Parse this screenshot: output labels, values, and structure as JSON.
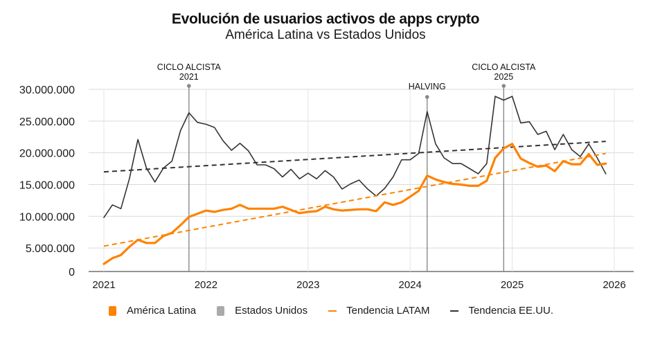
{
  "chart_data": {
    "type": "line",
    "title": "Evolución de usuarios activos de apps crypto",
    "subtitle": "América Latina vs Estados Unidos",
    "xlabel": "",
    "ylabel": "",
    "x_start": "2021-01",
    "x_step": "month",
    "xlim": [
      2021,
      2026
    ],
    "x_ticks": [
      "2021",
      "2022",
      "2023",
      "2024",
      "2025",
      "2026"
    ],
    "ylim": [
      1300000,
      30000000
    ],
    "y_ticks": [
      {
        "value": 1300000,
        "label": "0"
      },
      {
        "value": 5000000,
        "label": "5.000.000"
      },
      {
        "value": 10000000,
        "label": "10.000.000"
      },
      {
        "value": 15000000,
        "label": "15.000.000"
      },
      {
        "value": 20000000,
        "label": "20.000.000"
      },
      {
        "value": 25000000,
        "label": "25.000.000"
      },
      {
        "value": 30000000,
        "label": "30.000.000"
      }
    ],
    "grid": true,
    "legend_position": "bottom",
    "series": [
      {
        "name": "América Latina",
        "color": "#ff8200",
        "style": "solid",
        "values": [
          2.5,
          3.4,
          3.9,
          5.2,
          6.3,
          5.8,
          5.8,
          6.9,
          7.4,
          8.6,
          9.9,
          10.4,
          10.9,
          10.7,
          11.0,
          11.2,
          11.8,
          11.2,
          11.2,
          11.2,
          11.2,
          11.5,
          11.0,
          10.5,
          10.7,
          10.8,
          11.5,
          11.1,
          10.9,
          11.0,
          11.1,
          11.1,
          10.8,
          12.2,
          11.8,
          12.2,
          13.1,
          14.0,
          16.4,
          15.8,
          15.4,
          15.1,
          15.0,
          14.8,
          14.8,
          15.6,
          19.2,
          20.7,
          21.4,
          19.1,
          18.4,
          17.8,
          18.0,
          17.1,
          18.7,
          18.2,
          18.2,
          19.8,
          18.1,
          18.3
        ],
        "unit": "millions"
      },
      {
        "name": "Estados Unidos",
        "color": "#333333",
        "legend_color": "#aaaaaa",
        "style": "solid",
        "values": [
          9.8,
          11.8,
          11.2,
          15.9,
          22.1,
          17.6,
          15.4,
          17.6,
          18.7,
          23.5,
          26.3,
          24.8,
          24.5,
          24.0,
          21.9,
          20.4,
          21.5,
          20.3,
          18.1,
          18.1,
          17.5,
          16.2,
          17.4,
          15.9,
          16.8,
          15.9,
          17.2,
          16.2,
          14.3,
          15.1,
          15.7,
          14.3,
          13.2,
          14.4,
          16.2,
          18.9,
          18.9,
          19.9,
          26.5,
          21.4,
          19.2,
          18.3,
          18.3,
          17.5,
          16.7,
          18.3,
          28.9,
          28.3,
          28.9,
          24.7,
          24.9,
          22.9,
          23.4,
          20.5,
          22.9,
          20.5,
          19.4,
          21.4,
          19.2,
          16.7
        ],
        "unit": "millions"
      },
      {
        "name": "Tendencia LATAM",
        "color": "#ff8200",
        "style": "dashed",
        "start": 5.3,
        "end": 19.9,
        "unit": "millions"
      },
      {
        "name": "Tendencia EE.UU.",
        "color": "#333333",
        "style": "dashed",
        "start": 17.0,
        "end": 21.8,
        "unit": "millions"
      }
    ],
    "annotations": [
      {
        "label_line1": "CICLO ALCISTA",
        "label_line2": "2021",
        "index": 10
      },
      {
        "label_line1": "HALVING",
        "label_line2": "",
        "index": 38
      },
      {
        "label_line1": "CICLO ALCISTA",
        "label_line2": "2025",
        "index": 47
      }
    ]
  }
}
